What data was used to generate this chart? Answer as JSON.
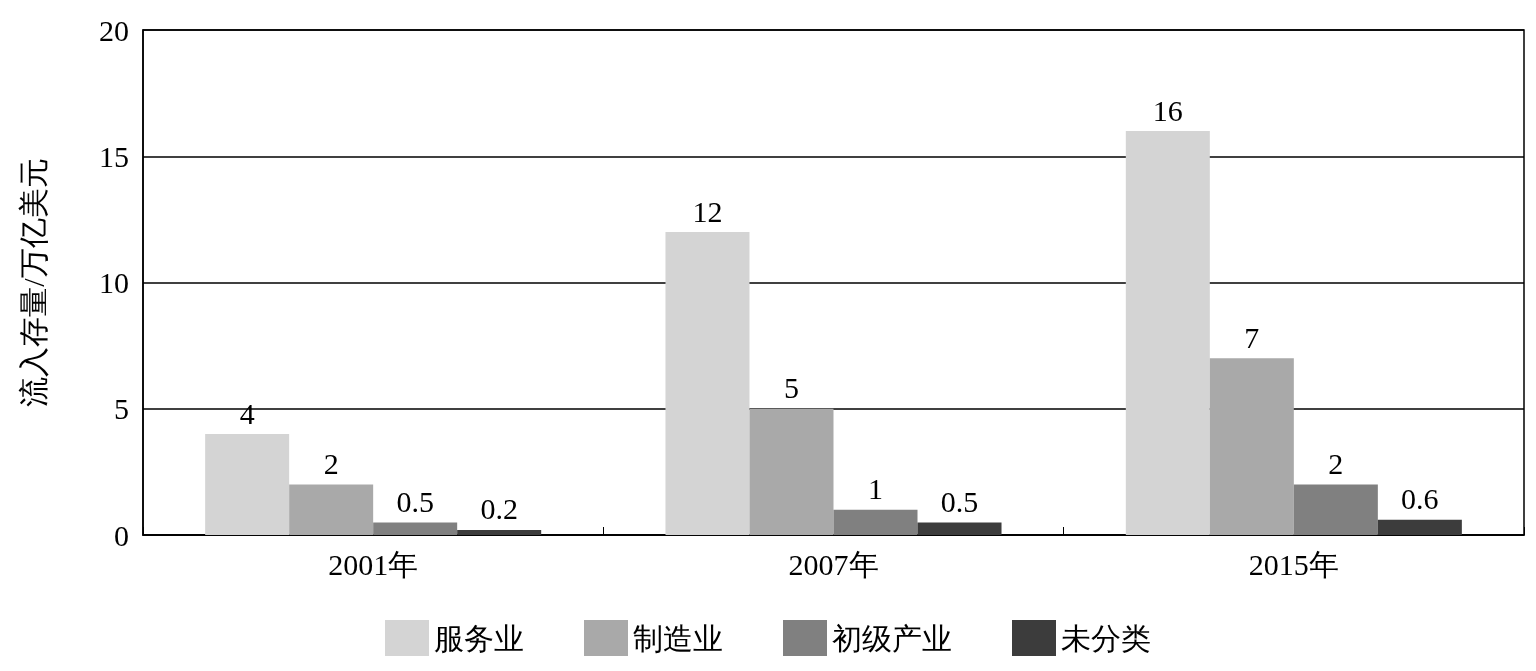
{
  "chart_data": {
    "type": "bar",
    "ylabel": "流入存量/万亿美元",
    "categories": [
      "2001年",
      "2007年",
      "2015年"
    ],
    "series": [
      {
        "name": "服务业",
        "color": "#d4d4d4",
        "values": [
          4,
          12,
          16
        ]
      },
      {
        "name": "制造业",
        "color": "#a9a9a9",
        "values": [
          2,
          5,
          7
        ]
      },
      {
        "name": "初级产业",
        "color": "#808080",
        "values": [
          0.5,
          1,
          2
        ]
      },
      {
        "name": "未分类",
        "color": "#3c3c3c",
        "values": [
          0.2,
          0.5,
          0.6
        ]
      }
    ],
    "ylim": [
      0,
      20
    ],
    "yticks": [
      0,
      5,
      10,
      15,
      20
    ],
    "grid": "y",
    "legend": "bottom",
    "data_labels": true
  }
}
